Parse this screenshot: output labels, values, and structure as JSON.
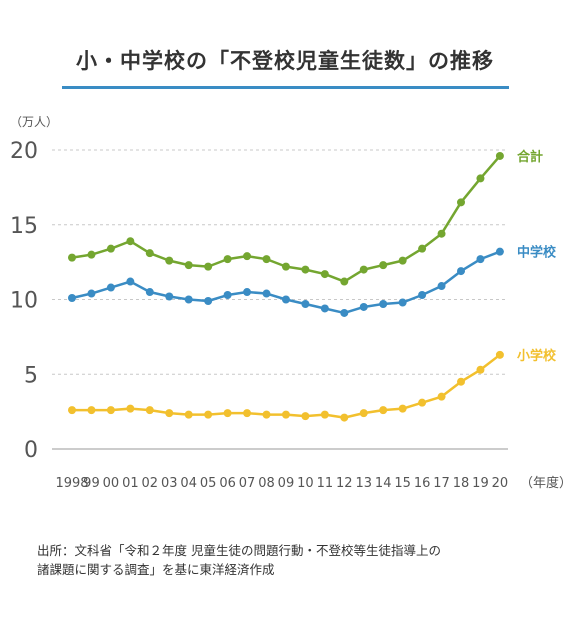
{
  "title": "小・中学校の「不登校児童生徒数」の推移",
  "source_line1": "出所：文科省「令和２年度 児童生徒の問題行動・不登校等生徒指導上の",
  "source_line2": "諸課題に関する調査」を基に東洋経済作成",
  "colors": {
    "total": "#74a630",
    "junior_high": "#3a8cc4",
    "elementary": "#f2c02e",
    "grid": "#c8c8c8",
    "text": "#555555"
  },
  "chart_data": {
    "type": "line",
    "title": "小・中学校の「不登校児童生徒数」の推移",
    "ylabel": "（万人）",
    "xlabel": "（年度）",
    "ylim": [
      0,
      20
    ],
    "yticks": [
      0,
      5,
      10,
      15,
      20
    ],
    "grid": true,
    "x_tick_labels": [
      "1998",
      "99",
      "00",
      "01",
      "02",
      "03",
      "04",
      "05",
      "06",
      "07",
      "08",
      "09",
      "10",
      "11",
      "12",
      "13",
      "14",
      "15",
      "16",
      "17",
      "18",
      "19",
      "20"
    ],
    "series": [
      {
        "name": "合計",
        "color": "#74a630",
        "values": [
          12.8,
          13.0,
          13.4,
          13.9,
          13.1,
          12.6,
          12.3,
          12.2,
          12.7,
          12.9,
          12.7,
          12.2,
          12.0,
          11.7,
          11.2,
          12.0,
          12.3,
          12.6,
          13.4,
          14.4,
          16.5,
          18.1,
          19.6
        ]
      },
      {
        "name": "中学校",
        "color": "#3a8cc4",
        "values": [
          10.1,
          10.4,
          10.8,
          11.2,
          10.5,
          10.2,
          10.0,
          9.9,
          10.3,
          10.5,
          10.4,
          10.0,
          9.7,
          9.4,
          9.1,
          9.5,
          9.7,
          9.8,
          10.3,
          10.9,
          11.9,
          12.7,
          13.2
        ]
      },
      {
        "name": "小学校",
        "color": "#f2c02e",
        "values": [
          2.6,
          2.6,
          2.6,
          2.7,
          2.6,
          2.4,
          2.3,
          2.3,
          2.4,
          2.4,
          2.3,
          2.3,
          2.2,
          2.3,
          2.1,
          2.4,
          2.6,
          2.7,
          3.1,
          3.5,
          4.5,
          5.3,
          6.3
        ]
      }
    ]
  }
}
